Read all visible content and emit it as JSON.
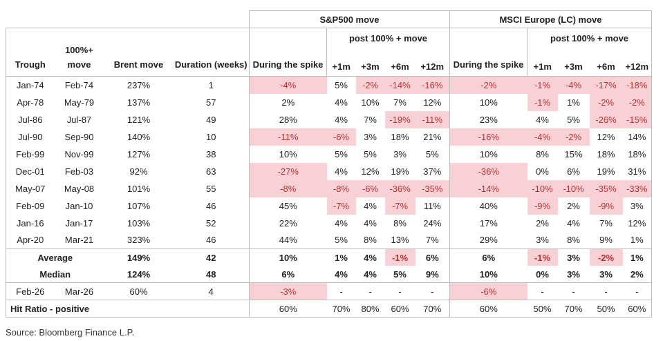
{
  "header": {
    "columns": [
      "Trough",
      "100%+ move",
      "Brent move",
      "Duration (weeks)"
    ],
    "groups": [
      {
        "title": "S&P500 move",
        "spike": "During the spike",
        "post": "post 100% + move",
        "horizons": [
          "+1m",
          "+3m",
          "+6m",
          "+12m"
        ]
      },
      {
        "title": "MSCI Europe (LC) move",
        "spike": "During the spike",
        "post": "post 100% + move",
        "horizons": [
          "+1m",
          "+3m",
          "+6m",
          "+12m"
        ]
      }
    ]
  },
  "rows": [
    [
      "Jan-74",
      "Feb-74",
      "237%",
      "1",
      "-4%",
      "5%",
      "-2%",
      "-14%",
      "-16%",
      "-2%",
      "-1%",
      "-4%",
      "-17%",
      "-18%"
    ],
    [
      "Apr-78",
      "May-79",
      "137%",
      "57",
      "2%",
      "4%",
      "10%",
      "7%",
      "12%",
      "10%",
      "-1%",
      "1%",
      "-2%",
      "-2%"
    ],
    [
      "Jul-86",
      "Jul-87",
      "121%",
      "49",
      "28%",
      "4%",
      "7%",
      "-19%",
      "-11%",
      "23%",
      "4%",
      "5%",
      "-26%",
      "-15%"
    ],
    [
      "Jul-90",
      "Sep-90",
      "140%",
      "10",
      "-11%",
      "-6%",
      "3%",
      "18%",
      "21%",
      "-16%",
      "-4%",
      "-2%",
      "12%",
      "14%"
    ],
    [
      "Feb-99",
      "Nov-99",
      "127%",
      "38",
      "10%",
      "5%",
      "5%",
      "3%",
      "5%",
      "10%",
      "8%",
      "15%",
      "18%",
      "18%"
    ],
    [
      "Dec-01",
      "Feb-03",
      "92%",
      "63",
      "-27%",
      "4%",
      "12%",
      "19%",
      "37%",
      "-36%",
      "0%",
      "6%",
      "19%",
      "31%"
    ],
    [
      "May-07",
      "May-08",
      "101%",
      "55",
      "-8%",
      "-8%",
      "-6%",
      "-36%",
      "-35%",
      "-14%",
      "-10%",
      "-10%",
      "-35%",
      "-33%"
    ],
    [
      "Feb-09",
      "Jan-10",
      "107%",
      "46",
      "45%",
      "-7%",
      "4%",
      "-7%",
      "11%",
      "40%",
      "-9%",
      "2%",
      "-9%",
      "3%"
    ],
    [
      "Jan-16",
      "Jan-17",
      "103%",
      "52",
      "22%",
      "4%",
      "4%",
      "8%",
      "24%",
      "17%",
      "2%",
      "4%",
      "7%",
      "12%"
    ],
    [
      "Apr-20",
      "Mar-21",
      "323%",
      "46",
      "44%",
      "5%",
      "8%",
      "13%",
      "7%",
      "29%",
      "3%",
      "8%",
      "9%",
      "1%"
    ]
  ],
  "summary": [
    {
      "label": "Average",
      "values": [
        "149%",
        "42",
        "10%",
        "1%",
        "4%",
        "-1%",
        "6%",
        "6%",
        "-1%",
        "3%",
        "-2%",
        "1%"
      ]
    },
    {
      "label": "Median",
      "values": [
        "124%",
        "48",
        "6%",
        "4%",
        "4%",
        "5%",
        "9%",
        "10%",
        "0%",
        "3%",
        "3%",
        "2%"
      ]
    }
  ],
  "current": [
    "Feb-26",
    "Mar-26",
    "60%",
    "4",
    "-3%",
    "-",
    "-",
    "-",
    "-",
    "-6%",
    "-",
    "-",
    "-",
    "-"
  ],
  "hit_ratio": {
    "label": "Hit Ratio - positive",
    "values": [
      "60%",
      "70%",
      "80%",
      "60%",
      "70%",
      "60%",
      "50%",
      "70%",
      "50%",
      "60%"
    ]
  },
  "source": "Source: Bloomberg Finance L.P.",
  "negative_fill": "#f8d1d7",
  "negative_text": "#b8322f"
}
